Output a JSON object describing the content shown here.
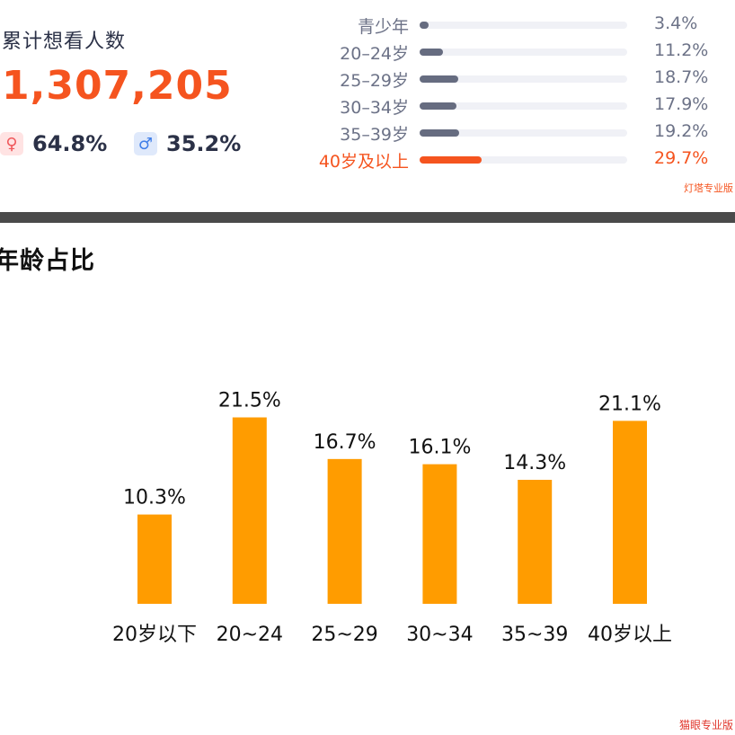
{
  "summary": {
    "title": "累计想看人数",
    "total": "1,307,205",
    "female": {
      "icon": "female-icon",
      "symbol": "♀",
      "pct": "64.8%"
    },
    "male": {
      "icon": "male-icon",
      "symbol": "♂",
      "pct": "35.2%"
    }
  },
  "age_breakdown": [
    {
      "label": "青少年",
      "value": "3.4%",
      "percent": 3.4
    },
    {
      "label": "20–24岁",
      "value": "11.2%",
      "percent": 11.2
    },
    {
      "label": "25–29岁",
      "value": "18.7%",
      "percent": 18.7
    },
    {
      "label": "30–34岁",
      "value": "17.9%",
      "percent": 17.9
    },
    {
      "label": "35–39岁",
      "value": "19.2%",
      "percent": 19.2
    },
    {
      "label": "40岁及以上",
      "value": "29.7%",
      "percent": 29.7,
      "highlight": true
    }
  ],
  "watermark_top": "灯塔专业版",
  "section_title": "年龄占比",
  "watermark_bottom": "猫眼专业版",
  "colors": {
    "accent": "#f5541f",
    "bar": "#ff9c00",
    "neutral_bar": "#666c80",
    "track": "#f0f1f6"
  },
  "chart_data": {
    "type": "bar",
    "title": "年龄占比",
    "categories": [
      "20岁以下",
      "20~24",
      "25~29",
      "30~34",
      "35~39",
      "40岁以上"
    ],
    "values": [
      10.3,
      21.5,
      16.7,
      16.1,
      14.3,
      21.1
    ],
    "value_labels": [
      "10.3%",
      "21.5%",
      "16.7%",
      "16.1%",
      "14.3%",
      "21.1%"
    ],
    "xlabel": "",
    "ylabel": "",
    "unit": "%",
    "grid": false,
    "legend": "none"
  }
}
